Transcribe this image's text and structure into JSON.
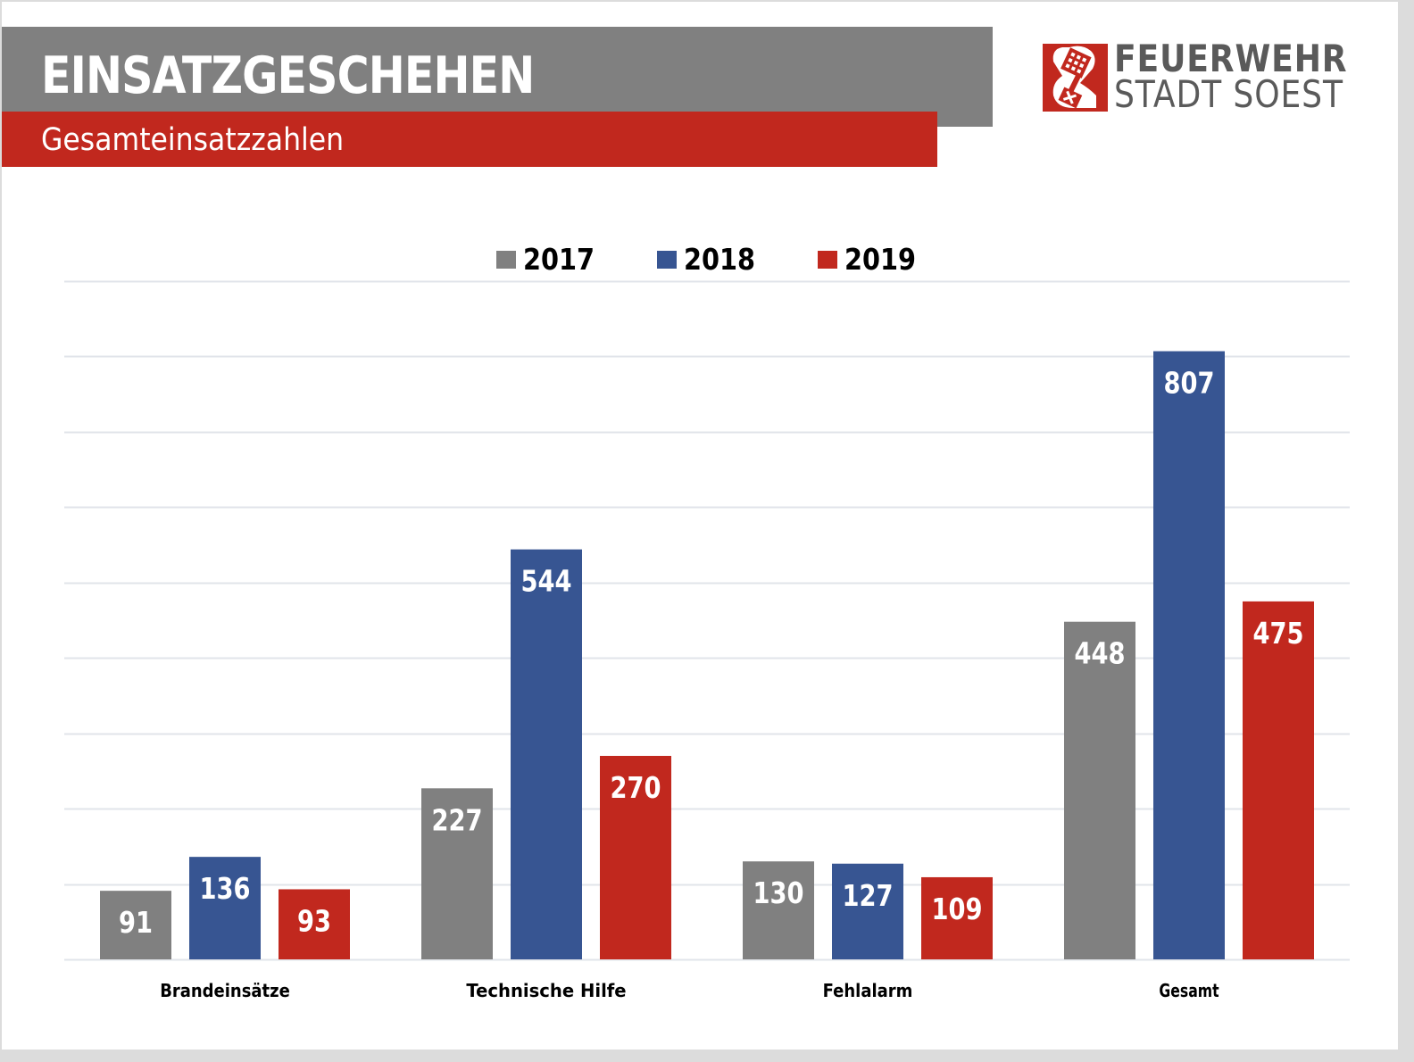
{
  "header": {
    "title": "EINSATZGESCHEHEN",
    "subtitle": "Gesamteinsatzzahlen"
  },
  "logo": {
    "icon": "soest-key-icon",
    "line1": "FEUERWEHR",
    "line2": "STADT SOEST"
  },
  "colors": {
    "title_bar": "#808080",
    "subtitle_bar": "#c1281e",
    "series_2017": "#808080",
    "series_2018": "#375592",
    "series_2019": "#c1281e",
    "gridline": "#e1e4ea"
  },
  "chart_data": {
    "type": "bar",
    "title": "",
    "xlabel": "",
    "ylabel": "",
    "categories": [
      "Brandeinsätze",
      "Technische Hilfe",
      "Fehlalarm",
      "Gesamt"
    ],
    "series": [
      {
        "name": "2017",
        "color": "#808080",
        "values": [
          91,
          227,
          130,
          448
        ]
      },
      {
        "name": "2018",
        "color": "#375592",
        "values": [
          136,
          544,
          127,
          807
        ]
      },
      {
        "name": "2019",
        "color": "#c1281e",
        "values": [
          93,
          270,
          109,
          475
        ]
      }
    ],
    "ylim": [
      0,
      900
    ],
    "ytick_step": 100,
    "yaxis_labels_visible": false,
    "grid": true,
    "legend": "top-center",
    "data_labels": "inside-end"
  }
}
